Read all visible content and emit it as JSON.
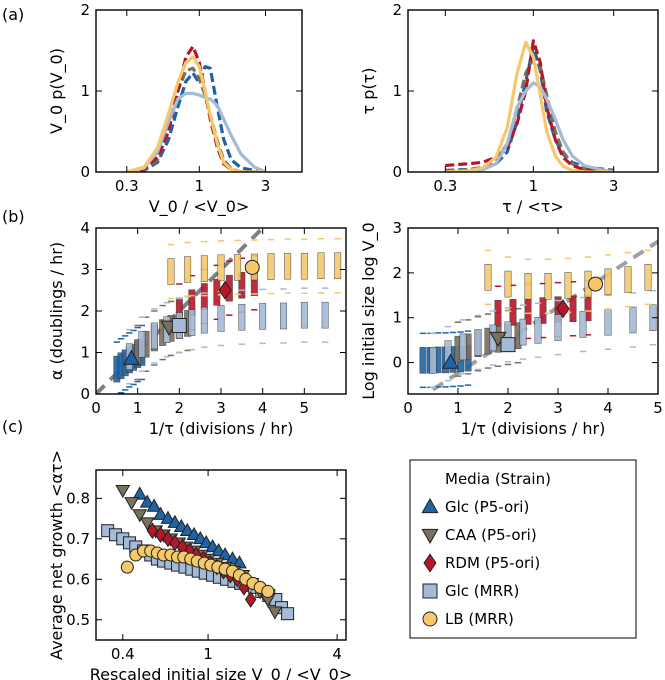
{
  "panel_tags": [
    "(a)",
    "(b)",
    "(c)"
  ],
  "colors": {
    "glc_p5": "#1f63a4",
    "caa_p5": "#7a7060",
    "rdm_p5": "#b5172a",
    "glc_mrr": "#a4bad6",
    "lb_mrr": "#f6c86a",
    "fit_line": "#a0a0a0"
  },
  "legend": {
    "title": "Media (Strain)",
    "entries": [
      {
        "label": "Glc (P5-ori)",
        "marker": "triangle-up",
        "color": "#1f63a4"
      },
      {
        "label": "CAA (P5-ori)",
        "marker": "triangle-down",
        "color": "#7a7060"
      },
      {
        "label": "RDM (P5-ori)",
        "marker": "diamond",
        "color": "#b5172a"
      },
      {
        "label": "Glc (MRR)",
        "marker": "square",
        "color": "#a4bad6"
      },
      {
        "label": "LB (MRR)",
        "marker": "circle",
        "color": "#f6c86a"
      }
    ]
  },
  "chart_data": [
    {
      "id": "a-left",
      "type": "line",
      "title": "",
      "xlabel": "V_0 / <V_0>",
      "ylabel": "V_0 p(V_0)",
      "xscale": "log",
      "xlim": [
        0.18,
        5.5
      ],
      "ylim": [
        0,
        2
      ],
      "xticks": [
        0.3,
        1,
        3
      ],
      "xtick_labels": [
        "0.3",
        "1",
        "3"
      ],
      "yticks": [
        0,
        1,
        2
      ],
      "ytick_labels": [
        "0",
        "1",
        "2"
      ],
      "x": [
        0.3,
        0.4,
        0.5,
        0.6,
        0.7,
        0.8,
        0.9,
        1.0,
        1.1,
        1.2,
        1.35,
        1.5,
        1.7,
        2.0,
        2.5,
        3.0
      ],
      "series": [
        {
          "name": "Glc (P5-ori)",
          "color": "#1f63a4",
          "dashed": true,
          "values": [
            0,
            0.02,
            0.12,
            0.4,
            0.8,
            1.12,
            1.22,
            1.1,
            1.3,
            1.28,
            0.8,
            0.4,
            0.15,
            0.05,
            0.02,
            0
          ]
        },
        {
          "name": "CAA (P5-ori)",
          "color": "#7a7060",
          "dashed": true,
          "values": [
            0,
            0.03,
            0.15,
            0.55,
            1.0,
            1.25,
            1.28,
            1.15,
            0.95,
            0.7,
            0.38,
            0.15,
            0.04,
            0,
            0,
            0
          ]
        },
        {
          "name": "RDM (P5-ori)",
          "color": "#b5172a",
          "dashed": true,
          "values": [
            0,
            0.04,
            0.18,
            0.5,
            1.0,
            1.42,
            1.55,
            1.35,
            1.0,
            0.65,
            0.3,
            0.1,
            0.03,
            0,
            0,
            0
          ]
        },
        {
          "name": "Glc (MRR)",
          "color": "#a4bad6",
          "dashed": false,
          "values": [
            0,
            0.05,
            0.25,
            0.62,
            0.9,
            0.97,
            0.97,
            0.95,
            0.92,
            0.9,
            0.82,
            0.65,
            0.45,
            0.22,
            0.06,
            0
          ]
        },
        {
          "name": "LB (MRR)",
          "color": "#f6c86a",
          "dashed": false,
          "values": [
            0,
            0.06,
            0.3,
            0.72,
            1.1,
            1.35,
            1.42,
            1.3,
            1.0,
            0.7,
            0.35,
            0.12,
            0.03,
            0,
            0,
            0
          ]
        }
      ]
    },
    {
      "id": "a-right",
      "type": "line",
      "title": "",
      "xlabel": "τ / <τ>",
      "ylabel": "τ p(τ)",
      "xscale": "log",
      "xlim": [
        0.18,
        5.5
      ],
      "ylim": [
        0,
        2
      ],
      "xticks": [
        0.3,
        1,
        3
      ],
      "xtick_labels": [
        "0.3",
        "1",
        "3"
      ],
      "yticks": [
        0,
        1,
        2
      ],
      "ytick_labels": [
        "0",
        "1",
        "2"
      ],
      "x": [
        0.3,
        0.4,
        0.5,
        0.6,
        0.7,
        0.8,
        0.9,
        1.0,
        1.1,
        1.2,
        1.35,
        1.5,
        1.7,
        2.0,
        2.5,
        3.0
      ],
      "series": [
        {
          "name": "Glc (P5-ori)",
          "color": "#1f63a4",
          "dashed": true,
          "values": [
            0.02,
            0.03,
            0.05,
            0.1,
            0.25,
            0.62,
            1.12,
            1.55,
            1.25,
            0.75,
            0.4,
            0.22,
            0.12,
            0.06,
            0.04,
            0.02
          ]
        },
        {
          "name": "CAA (P5-ori)",
          "color": "#7a7060",
          "dashed": true,
          "values": [
            0.01,
            0.02,
            0.06,
            0.14,
            0.35,
            0.78,
            1.22,
            1.4,
            1.3,
            0.95,
            0.5,
            0.25,
            0.1,
            0.04,
            0.01,
            0
          ]
        },
        {
          "name": "RDM (P5-ori)",
          "color": "#b5172a",
          "dashed": true,
          "values": [
            0.08,
            0.1,
            0.12,
            0.18,
            0.3,
            0.6,
            1.0,
            1.62,
            1.35,
            0.8,
            0.4,
            0.18,
            0.08,
            0.03,
            0.01,
            0
          ]
        },
        {
          "name": "Glc (MRR)",
          "color": "#a4bad6",
          "dashed": false,
          "values": [
            0,
            0.01,
            0.03,
            0.1,
            0.35,
            0.8,
            1.0,
            1.1,
            1.05,
            0.9,
            0.65,
            0.4,
            0.2,
            0.08,
            0.03,
            0
          ]
        },
        {
          "name": "LB (MRR)",
          "color": "#f6c86a",
          "dashed": false,
          "values": [
            0,
            0.01,
            0.05,
            0.18,
            0.55,
            1.22,
            1.6,
            1.42,
            0.95,
            0.5,
            0.2,
            0.07,
            0.02,
            0,
            0,
            0
          ]
        }
      ]
    },
    {
      "id": "b-left",
      "type": "scatter",
      "title": "",
      "xlabel": "1/τ (divisions / hr)",
      "ylabel": "α (doublings / hr)",
      "xlim": [
        0,
        6
      ],
      "ylim": [
        0,
        4
      ],
      "xticks": [
        0,
        1,
        2,
        3,
        4,
        5
      ],
      "xtick_labels": [
        "0",
        "1",
        "2",
        "3",
        "4",
        "5"
      ],
      "yticks": [
        0,
        1,
        2,
        3,
        4
      ],
      "ytick_labels": [
        "0",
        "1",
        "2",
        "3",
        "4"
      ],
      "reference_line": {
        "x": [
          0,
          4.0
        ],
        "y": [
          0,
          4.0
        ],
        "color": "#808080"
      },
      "box_series": [
        {
          "name": "Glc (P5-ori)",
          "color": "#1f63a4",
          "x": [
            0.5,
            0.6,
            0.7,
            0.8,
            0.9,
            1.0,
            1.1
          ],
          "y": [
            0.6,
            0.68,
            0.75,
            0.82,
            0.88,
            0.95,
            1.0
          ]
        },
        {
          "name": "CAA (P5-ori)",
          "color": "#7a7060",
          "x": [
            1.0,
            1.2,
            1.4,
            1.6,
            1.8,
            2.0,
            2.2
          ],
          "y": [
            1.0,
            1.2,
            1.35,
            1.48,
            1.58,
            1.65,
            1.7
          ]
        },
        {
          "name": "RDM (P5-ori)",
          "color": "#b5172a",
          "x": [
            2.0,
            2.3,
            2.6,
            2.9,
            3.2,
            3.5,
            3.8
          ],
          "y": [
            2.0,
            2.2,
            2.35,
            2.45,
            2.55,
            2.62,
            2.68
          ]
        },
        {
          "name": "Glc (MRR)",
          "color": "#a4bad6",
          "x": [
            0.8,
            1.1,
            1.4,
            1.7,
            2.0,
            2.3,
            2.6,
            3.0,
            3.5,
            4.0,
            4.5,
            5.0,
            5.5
          ],
          "y": [
            0.9,
            1.2,
            1.4,
            1.55,
            1.65,
            1.72,
            1.78,
            1.82,
            1.85,
            1.87,
            1.88,
            1.9,
            1.9
          ]
        },
        {
          "name": "LB (MRR)",
          "color": "#f6c86a",
          "x": [
            1.8,
            2.2,
            2.6,
            3.0,
            3.4,
            3.8,
            4.2,
            4.6,
            5.0,
            5.4,
            5.8
          ],
          "y": [
            2.95,
            3.0,
            3.02,
            3.04,
            3.05,
            3.06,
            3.07,
            3.08,
            3.08,
            3.09,
            3.09
          ]
        }
      ],
      "means": [
        {
          "name": "Glc (P5-ori)",
          "marker": "triangle-up",
          "color": "#1f63a4",
          "x": 0.85,
          "y": 0.85
        },
        {
          "name": "CAA (P5-ori)",
          "marker": "triangle-down",
          "color": "#7a7060",
          "x": 1.75,
          "y": 1.62
        },
        {
          "name": "RDM (P5-ori)",
          "marker": "diamond",
          "color": "#b5172a",
          "x": 3.1,
          "y": 2.5
        },
        {
          "name": "Glc (MRR)",
          "marker": "square",
          "color": "#a4bad6",
          "x": 2.0,
          "y": 1.65
        },
        {
          "name": "LB (MRR)",
          "marker": "circle",
          "color": "#f6c86a",
          "x": 3.75,
          "y": 3.05
        }
      ]
    },
    {
      "id": "b-right",
      "type": "scatter",
      "title": "",
      "xlabel": "1/τ (divisions / hr)",
      "ylabel": "Log initial size log V_0",
      "xlim": [
        0,
        5
      ],
      "ylim": [
        -0.7,
        3
      ],
      "xticks": [
        0,
        1,
        2,
        3,
        4,
        5
      ],
      "xtick_labels": [
        "0",
        "1",
        "2",
        "3",
        "4",
        "5"
      ],
      "yticks": [
        0,
        1,
        2,
        3
      ],
      "ytick_labels": [
        "0",
        "1",
        "2",
        "3"
      ],
      "reference_line": {
        "x": [
          0.5,
          5.0
        ],
        "y": [
          -0.6,
          2.7
        ],
        "color": "#a0a0a0"
      },
      "box_series": [
        {
          "name": "Glc (P5-ori)",
          "color": "#1f63a4",
          "x": [
            0.3,
            0.45,
            0.6,
            0.75,
            0.9,
            1.05,
            1.2
          ],
          "y": [
            0.05,
            0.05,
            0.06,
            0.06,
            0.07,
            0.08,
            0.1
          ]
        },
        {
          "name": "CAA (P5-ori)",
          "color": "#7a7060",
          "x": [
            1.0,
            1.2,
            1.4,
            1.6,
            1.8,
            2.0,
            2.2
          ],
          "y": [
            0.3,
            0.35,
            0.42,
            0.48,
            0.52,
            0.56,
            0.6
          ]
        },
        {
          "name": "RDM (P5-ori)",
          "color": "#b5172a",
          "x": [
            1.8,
            2.1,
            2.4,
            2.7,
            3.0,
            3.3,
            3.6
          ],
          "y": [
            1.1,
            1.12,
            1.14,
            1.16,
            1.18,
            1.2,
            1.22
          ]
        },
        {
          "name": "Glc (MRR)",
          "color": "#a4bad6",
          "x": [
            0.5,
            0.8,
            1.1,
            1.4,
            1.7,
            2.0,
            2.3,
            2.6,
            3.0,
            3.5,
            4.0,
            4.5,
            4.9
          ],
          "y": [
            0.05,
            0.2,
            0.35,
            0.45,
            0.55,
            0.62,
            0.68,
            0.72,
            0.78,
            0.85,
            0.9,
            0.95,
            1.0
          ]
        },
        {
          "name": "LB (MRR)",
          "color": "#f6c86a",
          "x": [
            1.6,
            2.0,
            2.4,
            2.8,
            3.2,
            3.6,
            4.0,
            4.4,
            4.8
          ],
          "y": [
            1.9,
            1.75,
            1.7,
            1.7,
            1.72,
            1.75,
            1.8,
            1.85,
            1.9
          ]
        }
      ],
      "means": [
        {
          "name": "Glc (P5-ori)",
          "marker": "triangle-up",
          "color": "#1f63a4",
          "x": 0.85,
          "y": 0.0
        },
        {
          "name": "CAA (P5-ori)",
          "marker": "triangle-down",
          "color": "#7a7060",
          "x": 1.8,
          "y": 0.55
        },
        {
          "name": "RDM (P5-ori)",
          "marker": "diamond",
          "color": "#b5172a",
          "x": 3.1,
          "y": 1.2
        },
        {
          "name": "Glc (MRR)",
          "marker": "square",
          "color": "#a4bad6",
          "x": 2.0,
          "y": 0.4
        },
        {
          "name": "LB (MRR)",
          "marker": "circle",
          "color": "#f6c86a",
          "x": 3.75,
          "y": 1.75
        }
      ]
    },
    {
      "id": "c",
      "type": "scatter",
      "title": "",
      "xlabel": "Rescaled initial size V_0 / <V_0>",
      "ylabel": "Average net growth <ατ>",
      "xscale": "log",
      "xlim": [
        0.3,
        4.4
      ],
      "ylim": [
        0.45,
        0.87
      ],
      "xticks": [
        0.4,
        1,
        4
      ],
      "xtick_labels": [
        "0.4",
        "1",
        "4"
      ],
      "yticks": [
        0.5,
        0.6,
        0.7,
        0.8
      ],
      "ytick_labels": [
        "0.5",
        "0.6",
        "0.7",
        "0.8"
      ],
      "series": [
        {
          "name": "Glc (MRR)",
          "marker": "square",
          "color": "#a4bad6",
          "x": [
            0.34,
            0.37,
            0.4,
            0.43,
            0.46,
            0.5,
            0.54,
            0.58,
            0.62,
            0.67,
            0.72,
            0.78,
            0.84,
            0.9,
            0.97,
            1.05,
            1.13,
            1.22,
            1.32,
            1.42,
            1.53,
            1.65,
            1.78,
            1.92,
            2.07,
            2.2,
            2.35
          ],
          "y": [
            0.72,
            0.71,
            0.7,
            0.69,
            0.68,
            0.67,
            0.66,
            0.65,
            0.645,
            0.64,
            0.635,
            0.63,
            0.625,
            0.62,
            0.615,
            0.61,
            0.605,
            0.6,
            0.595,
            0.59,
            0.585,
            0.58,
            0.57,
            0.56,
            0.55,
            0.53,
            0.515
          ]
        },
        {
          "name": "Glc (P5-ori)",
          "marker": "triangle-up",
          "color": "#1f63a4",
          "x": [
            0.48,
            0.52,
            0.56,
            0.6,
            0.65,
            0.7,
            0.75,
            0.8,
            0.86,
            0.92,
            0.98,
            1.05,
            1.12,
            1.2,
            1.3,
            1.4
          ],
          "y": [
            0.81,
            0.79,
            0.78,
            0.76,
            0.75,
            0.74,
            0.73,
            0.72,
            0.71,
            0.7,
            0.69,
            0.68,
            0.67,
            0.66,
            0.65,
            0.64
          ]
        },
        {
          "name": "CAA (P5-ori)",
          "marker": "triangle-down",
          "color": "#7a7060",
          "x": [
            0.4,
            0.44,
            0.48,
            0.52,
            0.57,
            0.62,
            0.67,
            0.73,
            0.79,
            0.86,
            0.93,
            1.0,
            1.1,
            1.2,
            1.32,
            1.45,
            1.6,
            1.75,
            1.9,
            2.05
          ],
          "y": [
            0.82,
            0.79,
            0.76,
            0.74,
            0.72,
            0.71,
            0.7,
            0.69,
            0.68,
            0.67,
            0.66,
            0.65,
            0.64,
            0.63,
            0.62,
            0.61,
            0.59,
            0.57,
            0.55,
            0.52
          ]
        },
        {
          "name": "RDM (P5-ori)",
          "marker": "diamond",
          "color": "#b5172a",
          "x": [
            0.55,
            0.6,
            0.65,
            0.7,
            0.76,
            0.82,
            0.88,
            0.95,
            1.02,
            1.1,
            1.18,
            1.27,
            1.37,
            1.47,
            1.58
          ],
          "y": [
            0.72,
            0.71,
            0.7,
            0.69,
            0.68,
            0.67,
            0.66,
            0.65,
            0.64,
            0.63,
            0.62,
            0.61,
            0.6,
            0.58,
            0.55
          ]
        },
        {
          "name": "LB (MRR)",
          "marker": "circle",
          "color": "#f6c86a",
          "x": [
            0.42,
            0.46,
            0.5,
            0.54,
            0.58,
            0.62,
            0.67,
            0.72,
            0.77,
            0.83,
            0.89,
            0.96,
            1.03,
            1.11,
            1.2,
            1.3,
            1.4,
            1.5,
            1.62,
            1.75,
            1.9
          ],
          "y": [
            0.63,
            0.66,
            0.67,
            0.67,
            0.665,
            0.66,
            0.66,
            0.655,
            0.655,
            0.65,
            0.645,
            0.64,
            0.635,
            0.63,
            0.625,
            0.62,
            0.61,
            0.6,
            0.59,
            0.58,
            0.57
          ]
        }
      ]
    }
  ]
}
